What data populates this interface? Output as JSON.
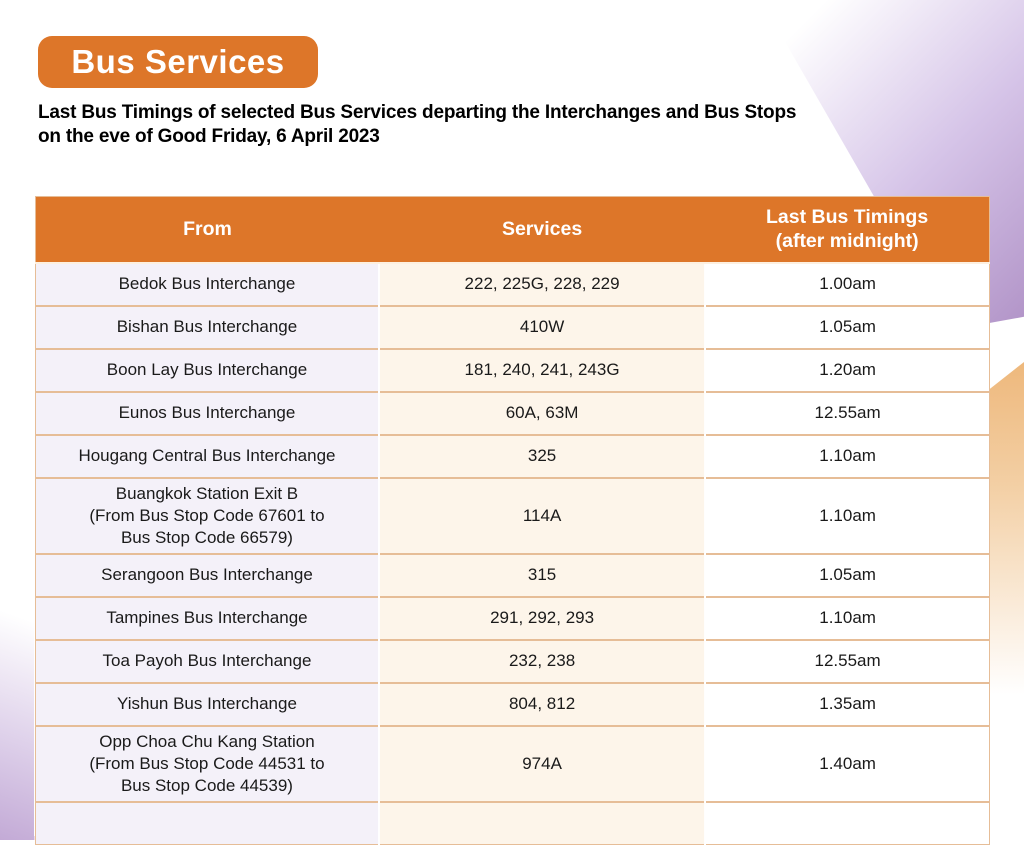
{
  "page": {
    "badge_label": "Bus Services",
    "title": "Last Bus Timings of selected Bus Services departing the Interchanges and Bus Stops\non the eve of Good Friday, 6 April 2023"
  },
  "colors": {
    "header_bg": "#dd7629",
    "col_from_bg": "#f4f1f9",
    "col_services_bg": "#fdf5ea",
    "col_timings_bg": "#ffffff",
    "row_divider": "#e6bd97",
    "decor_purple": "#b193c7",
    "decor_orange": "#eeb87c"
  },
  "table": {
    "columns": [
      "From",
      "Services",
      "Last Bus Timings\n(after midnight)"
    ],
    "rows": [
      {
        "from": "Bedok Bus Interchange",
        "services": "222, 225G, 228, 229",
        "timing": "1.00am"
      },
      {
        "from": "Bishan Bus Interchange",
        "services": "410W",
        "timing": "1.05am"
      },
      {
        "from": "Boon Lay Bus Interchange",
        "services": "181, 240, 241, 243G",
        "timing": "1.20am"
      },
      {
        "from": "Eunos Bus Interchange",
        "services": "60A, 63M",
        "timing": "12.55am"
      },
      {
        "from": "Hougang Central Bus Interchange",
        "services": "325",
        "timing": "1.10am"
      },
      {
        "from": "Buangkok Station Exit B\n(From Bus Stop Code 67601 to\nBus Stop Code 66579)",
        "services": "114A",
        "timing": "1.10am"
      },
      {
        "from": "Serangoon Bus Interchange",
        "services": "315",
        "timing": "1.05am"
      },
      {
        "from": "Tampines Bus Interchange",
        "services": "291, 292, 293",
        "timing": "1.10am"
      },
      {
        "from": "Toa Payoh Bus Interchange",
        "services": "232, 238",
        "timing": "12.55am"
      },
      {
        "from": "Yishun Bus Interchange",
        "services": "804, 812",
        "timing": "1.35am"
      },
      {
        "from": "Opp Choa Chu Kang Station\n(From Bus Stop Code 44531 to\nBus Stop Code 44539)",
        "services": "974A",
        "timing": "1.40am"
      },
      {
        "from": "",
        "services": "",
        "timing": ""
      }
    ]
  }
}
